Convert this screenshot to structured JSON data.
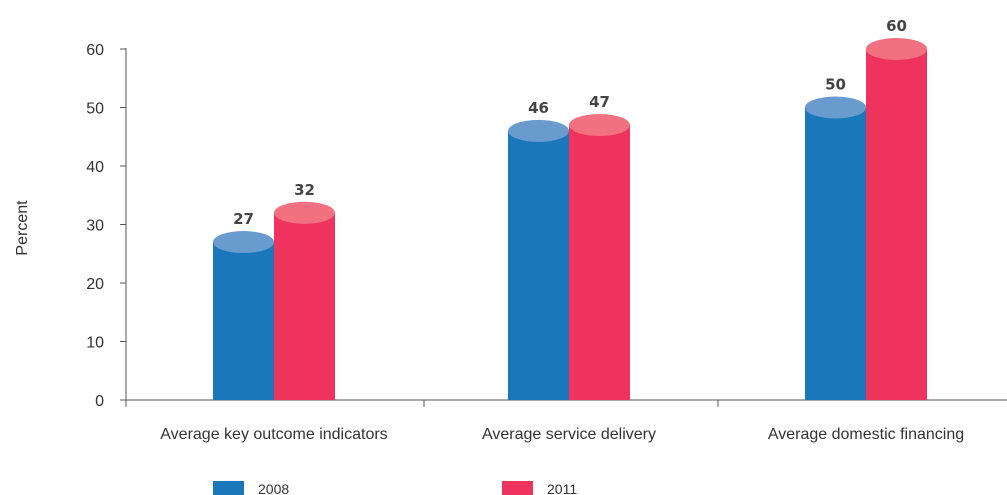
{
  "chart_data": {
    "type": "bar",
    "ylabel": "Percent",
    "xlabel": "",
    "ylim": [
      0,
      60
    ],
    "yticks": [
      0,
      10,
      20,
      30,
      40,
      50,
      60
    ],
    "categories": [
      "Average key outcome indicators",
      "Average service delivery",
      "Average domestic financing"
    ],
    "series": [
      {
        "name": "2008",
        "color": "#1a78ba",
        "top_color": "#6a9bcf",
        "values": [
          27,
          46,
          50
        ]
      },
      {
        "name": "2011",
        "color": "#ee335e",
        "top_color": "#f27180",
        "values": [
          32,
          47,
          60
        ]
      }
    ],
    "grid": false,
    "legend_position": "bottom",
    "bar_style": "cylinder"
  }
}
